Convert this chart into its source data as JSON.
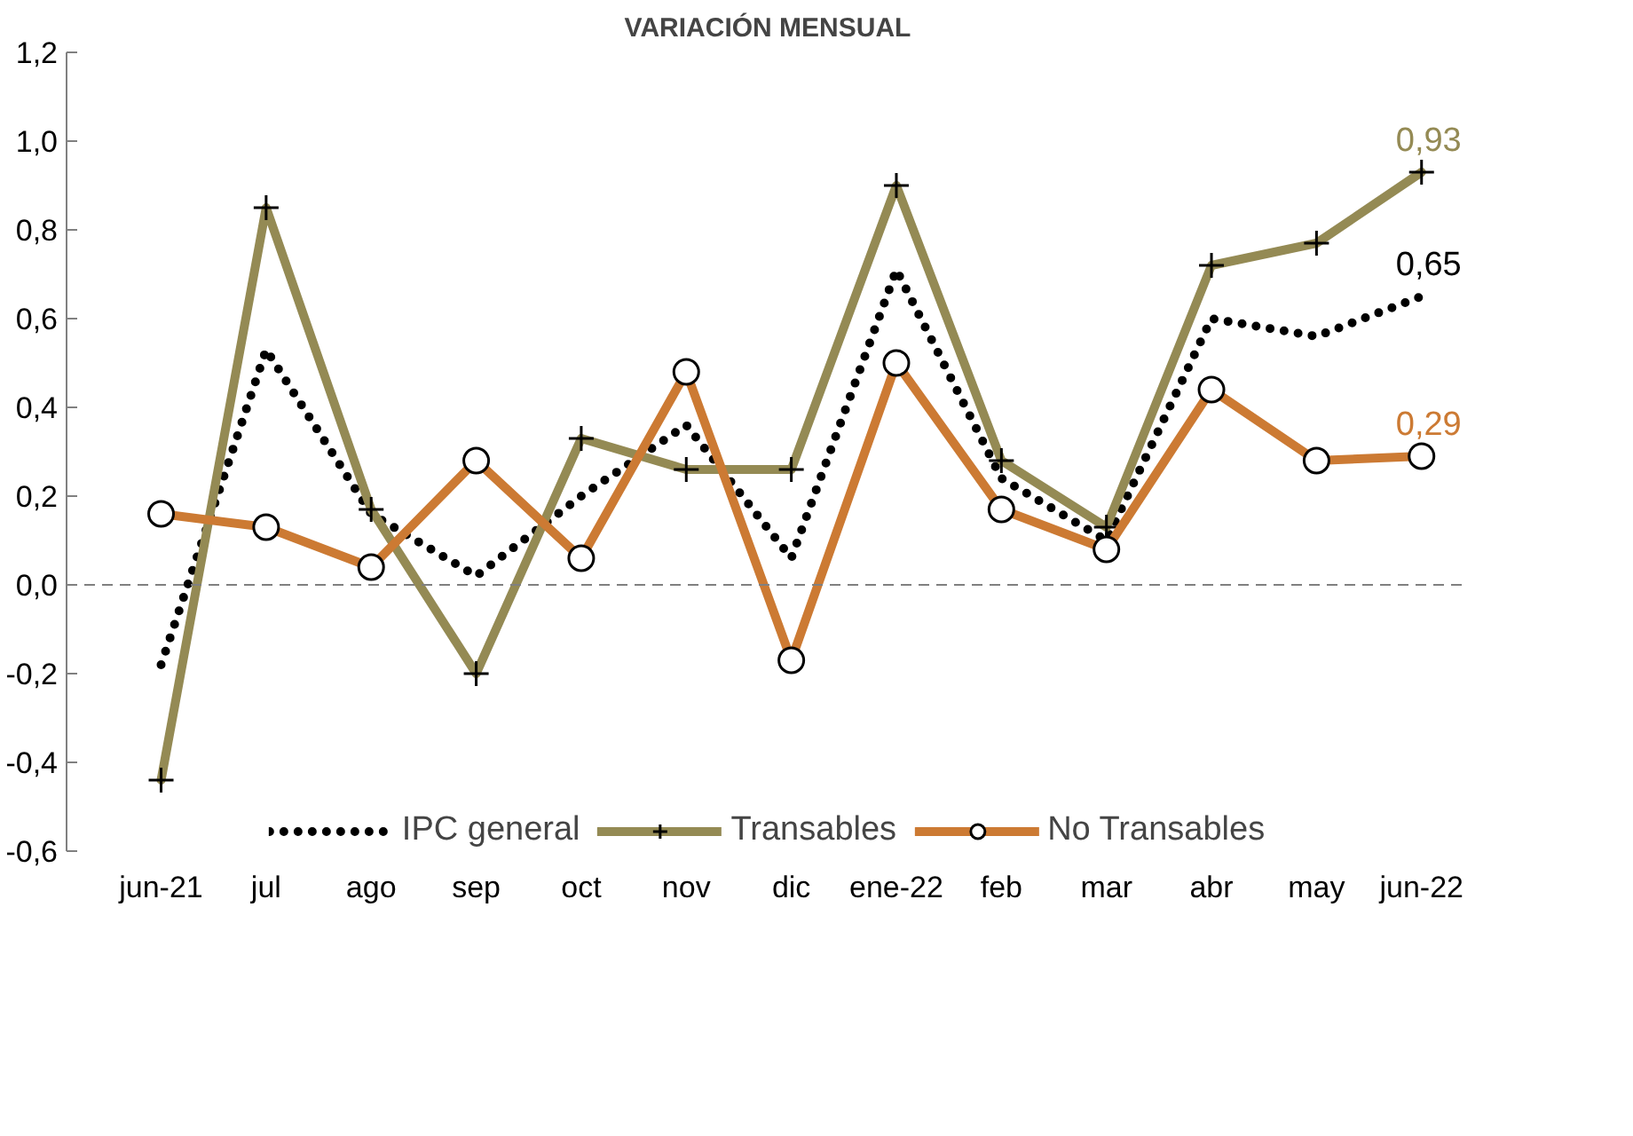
{
  "chart_data": {
    "type": "line",
    "title": "VARIACIÓN MENSUAL",
    "categories": [
      "jun-21",
      "jul",
      "ago",
      "sep",
      "oct",
      "nov",
      "dic",
      "ene-22",
      "feb",
      "mar",
      "abr",
      "may",
      "jun-22"
    ],
    "series": [
      {
        "name": "IPC general",
        "color": "#000000",
        "line_style": "dotted",
        "marker": "none",
        "values": [
          -0.18,
          0.53,
          0.16,
          0.02,
          0.2,
          0.36,
          0.06,
          0.71,
          0.24,
          0.1,
          0.6,
          0.56,
          0.65
        ],
        "value_labels": [
          null,
          null,
          null,
          null,
          null,
          null,
          null,
          null,
          null,
          null,
          null,
          null,
          "0,65"
        ]
      },
      {
        "name": "Transables",
        "color": "#948a54",
        "line_style": "solid",
        "marker": "cross",
        "values": [
          -0.44,
          0.85,
          0.17,
          -0.2,
          0.33,
          0.26,
          0.26,
          0.9,
          0.28,
          0.13,
          0.72,
          0.77,
          0.93
        ],
        "value_labels": [
          null,
          null,
          null,
          null,
          null,
          null,
          null,
          null,
          null,
          null,
          null,
          null,
          "0,93"
        ]
      },
      {
        "name": "No Transables",
        "color": "#cc7a33",
        "line_style": "solid",
        "marker": "circle",
        "values": [
          0.16,
          0.13,
          0.04,
          0.28,
          0.06,
          0.48,
          -0.17,
          0.5,
          0.17,
          0.08,
          0.44,
          0.28,
          0.29
        ],
        "value_labels": [
          null,
          null,
          null,
          null,
          null,
          null,
          null,
          null,
          null,
          null,
          null,
          null,
          "0,29"
        ]
      }
    ],
    "ylim": [
      -0.6,
      1.2
    ],
    "yticks": [
      {
        "value": -0.6,
        "label": "-0,6"
      },
      {
        "value": -0.4,
        "label": "-0,4"
      },
      {
        "value": -0.2,
        "label": "-0,2"
      },
      {
        "value": 0,
        "label": "0,0"
      },
      {
        "value": 0.2,
        "label": "0,2"
      },
      {
        "value": 0.4,
        "label": "0,4"
      },
      {
        "value": 0.6,
        "label": "0,6"
      },
      {
        "value": 0.8,
        "label": "0,8"
      },
      {
        "value": 1.0,
        "label": "1,0"
      },
      {
        "value": 1.2,
        "label": "1,2"
      }
    ],
    "ref_lines": [
      {
        "axis": "y",
        "value": 0,
        "color": "#808080",
        "line_style": "dashed"
      }
    ],
    "grid": false,
    "legend": "bottom"
  }
}
